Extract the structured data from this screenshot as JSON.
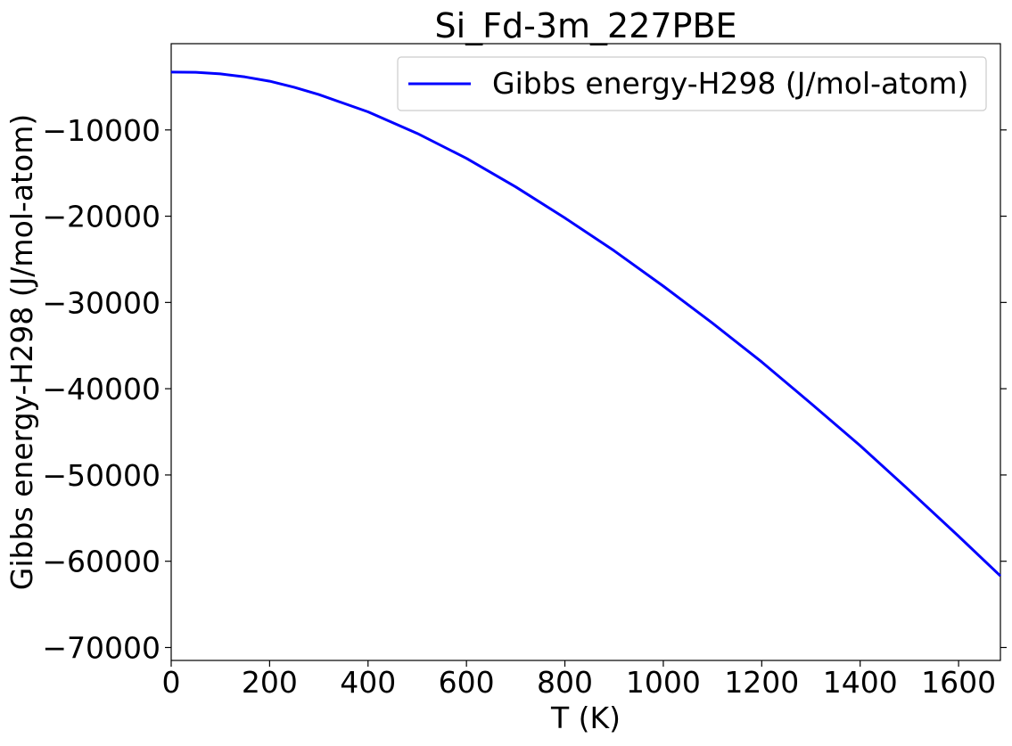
{
  "chart_data": {
    "type": "line",
    "title": "Si_Fd-3m_227PBE",
    "xlabel": "T (K)",
    "ylabel": "Gibbs energy-H298 (J/mol-atom)",
    "xlim": [
      0,
      1685
    ],
    "ylim": [
      -71500,
      0
    ],
    "xticks": [
      0,
      200,
      400,
      600,
      800,
      1000,
      1200,
      1400,
      1600
    ],
    "xtick_labels": [
      "0",
      "200",
      "400",
      "600",
      "800",
      "1000",
      "1200",
      "1400",
      "1600"
    ],
    "yticks": [
      -10000,
      -20000,
      -30000,
      -40000,
      -50000,
      -60000,
      -70000
    ],
    "ytick_labels": [
      "−10000",
      "−20000",
      "−30000",
      "−40000",
      "−50000",
      "−60000",
      "−70000"
    ],
    "grid": false,
    "legend_position": "top-right",
    "series": [
      {
        "name": "Gibbs energy-H298 (J/mol-atom)",
        "color": "#0000ff",
        "x": [
          0,
          50,
          100,
          150,
          200,
          250,
          300,
          400,
          500,
          600,
          700,
          800,
          900,
          1000,
          1100,
          1200,
          1300,
          1400,
          1500,
          1600,
          1685
        ],
        "y": [
          -3300,
          -3320,
          -3500,
          -3850,
          -4350,
          -5050,
          -5900,
          -7900,
          -10400,
          -13300,
          -16600,
          -20200,
          -24000,
          -28100,
          -32400,
          -36900,
          -41700,
          -46600,
          -51800,
          -57100,
          -61700
        ]
      }
    ]
  }
}
